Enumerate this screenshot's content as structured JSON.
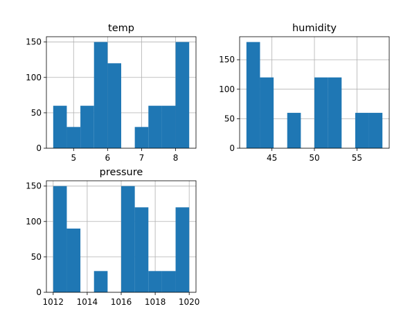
{
  "chart_data": [
    {
      "type": "bar",
      "title": "temp",
      "bins": [
        [
          4.4,
          4.8
        ],
        [
          4.8,
          5.2
        ],
        [
          5.2,
          5.6
        ],
        [
          5.6,
          6.0
        ],
        [
          6.0,
          6.4
        ],
        [
          6.4,
          6.8
        ],
        [
          6.8,
          7.2
        ],
        [
          7.2,
          7.6
        ],
        [
          7.6,
          8.0
        ],
        [
          8.0,
          8.4
        ]
      ],
      "values": [
        60,
        30,
        60,
        150,
        120,
        0,
        30,
        60,
        60,
        150
      ],
      "xlim": [
        4.2,
        8.6
      ],
      "ylim": [
        0,
        157.5
      ],
      "xticks": [
        5,
        6,
        7,
        8
      ],
      "xtick_labels": [
        "5",
        "6",
        "7",
        "8"
      ],
      "yticks": [
        0,
        50,
        100,
        150
      ],
      "ytick_labels": [
        "0",
        "50",
        "100",
        "150"
      ],
      "grid": true,
      "color": "#1f77b4"
    },
    {
      "type": "bar",
      "title": "humidity",
      "bins": [
        [
          42,
          43.6
        ],
        [
          43.6,
          45.2
        ],
        [
          45.2,
          46.8
        ],
        [
          46.8,
          48.4
        ],
        [
          48.4,
          50
        ],
        [
          50,
          51.6
        ],
        [
          51.6,
          53.2
        ],
        [
          53.2,
          54.8
        ],
        [
          54.8,
          56.4
        ],
        [
          56.4,
          58
        ]
      ],
      "values": [
        180,
        120,
        0,
        60,
        0,
        120,
        120,
        0,
        60,
        60
      ],
      "xlim": [
        41.2,
        58.8
      ],
      "ylim": [
        0,
        189
      ],
      "xticks": [
        45,
        50,
        55
      ],
      "xtick_labels": [
        "45",
        "50",
        "55"
      ],
      "yticks": [
        0,
        50,
        100,
        150
      ],
      "ytick_labels": [
        "0",
        "50",
        "100",
        "150"
      ],
      "grid": true,
      "color": "#1f77b4"
    },
    {
      "type": "bar",
      "title": "pressure",
      "bins": [
        [
          1012,
          1012.8
        ],
        [
          1012.8,
          1013.6
        ],
        [
          1013.6,
          1014.4
        ],
        [
          1014.4,
          1015.2
        ],
        [
          1015.2,
          1016
        ],
        [
          1016,
          1016.8
        ],
        [
          1016.8,
          1017.6
        ],
        [
          1017.6,
          1018.4
        ],
        [
          1018.4,
          1019.2
        ],
        [
          1019.2,
          1020
        ]
      ],
      "values": [
        150,
        90,
        0,
        30,
        0,
        150,
        120,
        30,
        30,
        120
      ],
      "xlim": [
        1011.6,
        1020.4
      ],
      "ylim": [
        0,
        157.5
      ],
      "xticks": [
        1012,
        1014,
        1016,
        1018,
        1020
      ],
      "xtick_labels": [
        "1012",
        "1014",
        "1016",
        "1018",
        "1020"
      ],
      "yticks": [
        0,
        50,
        100,
        150
      ],
      "ytick_labels": [
        "0",
        "50",
        "100",
        "150"
      ],
      "grid": true,
      "color": "#1f77b4"
    }
  ]
}
